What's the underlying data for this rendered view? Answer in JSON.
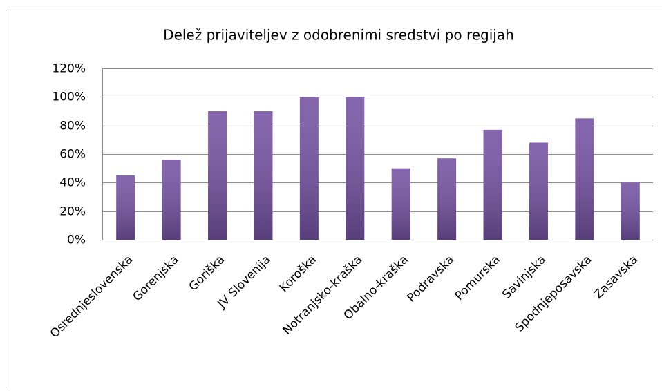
{
  "chart_data": {
    "type": "bar",
    "title": "Delež prijaviteljev z odobrenimi sredstvi po regijah",
    "categories": [
      "Osrednjeslovenska",
      "Gorenjska",
      "Goriška",
      "JV Slovenija",
      "Koroška",
      "Notranjsko-kraška",
      "Obalno-kraška",
      "Podravska",
      "Pomurska",
      "Savinjska",
      "Spodnjeposavska",
      "Zasavska"
    ],
    "values": [
      45,
      56,
      90,
      90,
      100,
      100,
      50,
      57,
      77,
      68,
      85,
      40
    ],
    "color": "#7552a3",
    "ylim": [
      0,
      120
    ],
    "yticks": [
      {
        "value": 0,
        "label": "0%"
      },
      {
        "value": 20,
        "label": "20%"
      },
      {
        "value": 40,
        "label": "40%"
      },
      {
        "value": 60,
        "label": "60%"
      },
      {
        "value": 80,
        "label": "80%"
      },
      {
        "value": 100,
        "label": "100%"
      },
      {
        "value": 120,
        "label": "120%"
      }
    ],
    "grid": true
  }
}
